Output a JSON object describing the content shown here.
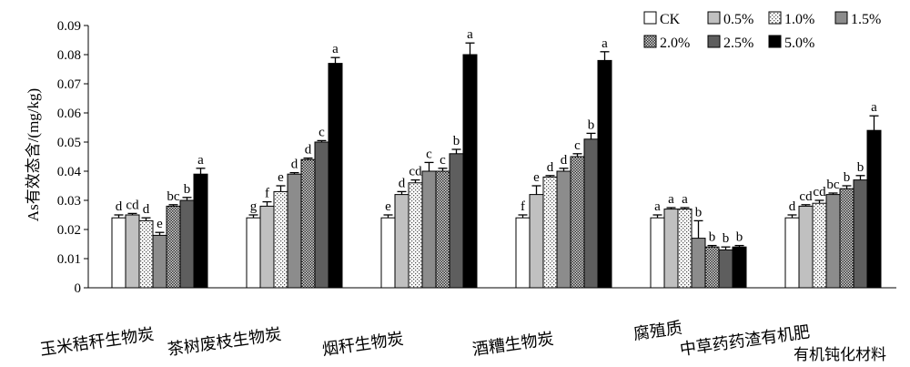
{
  "chart_data": {
    "type": "bar",
    "title": "",
    "ylabel": "As有效态含/(mg/kg)",
    "xlabel": "有机钝化材料",
    "ylim": [
      0,
      0.09
    ],
    "yticks": [
      "0",
      "0.01",
      "0.02",
      "0.03",
      "0.04",
      "0.05",
      "0.06",
      "0.07",
      "0.08",
      "0.09"
    ],
    "legend_position": "top-right",
    "categories": [
      "玉米秸秆生物炭",
      "茶树废枝生物炭",
      "烟秆生物炭",
      "酒糟生物炭",
      "腐殖质",
      "中草药药渣有机肥"
    ],
    "series": [
      {
        "name": "CK",
        "pattern": "white",
        "values": [
          0.024,
          0.024,
          0.024,
          0.024,
          0.024,
          0.024
        ],
        "errors": [
          0.001,
          0.001,
          0.001,
          0.001,
          0.001,
          0.001
        ],
        "letters": [
          "d",
          "g",
          "e",
          "f",
          "a",
          "d"
        ]
      },
      {
        "name": "0.5%",
        "pattern": "light",
        "values": [
          0.025,
          0.028,
          0.032,
          0.032,
          0.027,
          0.028
        ],
        "errors": [
          0.0005,
          0.0015,
          0.001,
          0.003,
          0.0005,
          0.0005
        ],
        "letters": [
          "cd",
          "f",
          "d",
          "e",
          "a",
          "cd"
        ]
      },
      {
        "name": "1.0%",
        "pattern": "dots",
        "values": [
          0.023,
          0.033,
          0.036,
          0.038,
          0.027,
          0.029
        ],
        "errors": [
          0.001,
          0.002,
          0.001,
          0.0005,
          0.0005,
          0.001
        ],
        "letters": [
          "d",
          "e",
          "cd",
          "d",
          "a",
          "cd"
        ]
      },
      {
        "name": "1.5%",
        "pattern": "medium",
        "values": [
          0.018,
          0.039,
          0.04,
          0.04,
          0.017,
          0.032
        ],
        "errors": [
          0.001,
          0.0005,
          0.003,
          0.001,
          0.006,
          0.0005
        ],
        "letters": [
          "e",
          "d",
          "c",
          "d",
          "b",
          "bc"
        ]
      },
      {
        "name": "2.0%",
        "pattern": "dense",
        "values": [
          0.028,
          0.044,
          0.04,
          0.045,
          0.014,
          0.034
        ],
        "errors": [
          0.0005,
          0.0005,
          0.001,
          0.001,
          0.0005,
          0.001
        ],
        "letters": [
          "bc",
          "d",
          "c",
          "c",
          "b",
          "b"
        ]
      },
      {
        "name": "2.5%",
        "pattern": "dark",
        "values": [
          0.03,
          0.05,
          0.046,
          0.051,
          0.013,
          0.037
        ],
        "errors": [
          0.001,
          0.0005,
          0.0015,
          0.002,
          0.001,
          0.0015
        ],
        "letters": [
          "b",
          "c",
          "b",
          "b",
          "b",
          "b"
        ]
      },
      {
        "name": "5.0%",
        "pattern": "black",
        "values": [
          0.039,
          0.077,
          0.08,
          0.078,
          0.014,
          0.054
        ],
        "errors": [
          0.002,
          0.002,
          0.004,
          0.003,
          0.0005,
          0.005
        ],
        "letters": [
          "a",
          "a",
          "a",
          "a",
          "b",
          "a"
        ]
      }
    ]
  }
}
